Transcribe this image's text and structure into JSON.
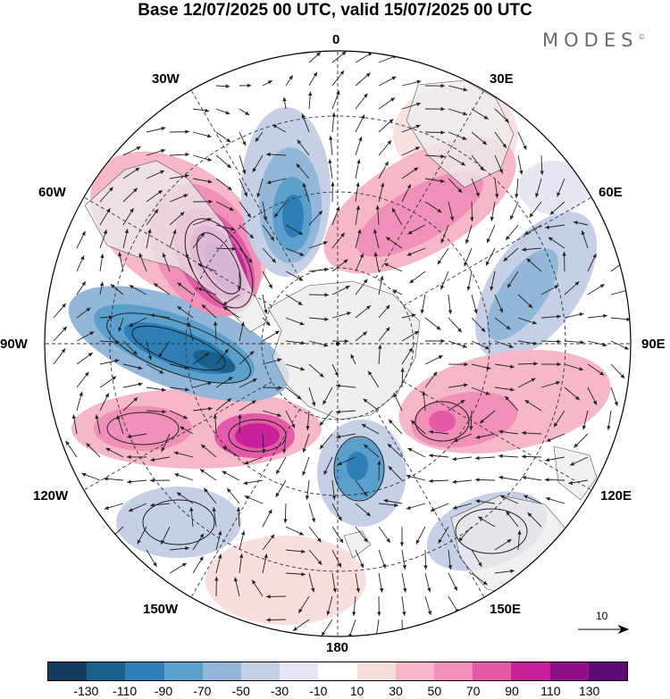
{
  "header": {
    "title": "Base 12/07/2025 00 UTC, valid 15/07/2025 00 UTC",
    "brand": "MODES",
    "brand_mark": "©"
  },
  "map": {
    "projection": "south-polar-stereographic",
    "longitude_labels": {
      "top": "0",
      "top_right": "30E",
      "right_upper": "60E",
      "right": "90E",
      "right_lower": "120E",
      "bottom_right": "150E",
      "bottom": "180",
      "bottom_left": "150W",
      "left_lower": "120W",
      "left": "90W",
      "left_upper": "60W",
      "top_left": "30W"
    },
    "reference_vector": "10",
    "colors": {
      "land": "#ececec",
      "antarctica": "#e9e9e9",
      "vector": "#222222",
      "grid": "#333333"
    }
  },
  "colorbar": {
    "colors": [
      "#173b5c",
      "#1b5f8d",
      "#2e7fb7",
      "#5b9fcc",
      "#93b7d8",
      "#c5d0e6",
      "#e6e6f2",
      "#ffffff",
      "#f9dede",
      "#f6b8c8",
      "#f08fb7",
      "#e45aa8",
      "#c8219a",
      "#8f1088",
      "#5d0b76"
    ],
    "tick_labels": [
      "-130",
      "-110",
      "-90",
      "-70",
      "-50",
      "-30",
      "-10",
      "10",
      "30",
      "50",
      "70",
      "90",
      "110",
      "130"
    ]
  }
}
